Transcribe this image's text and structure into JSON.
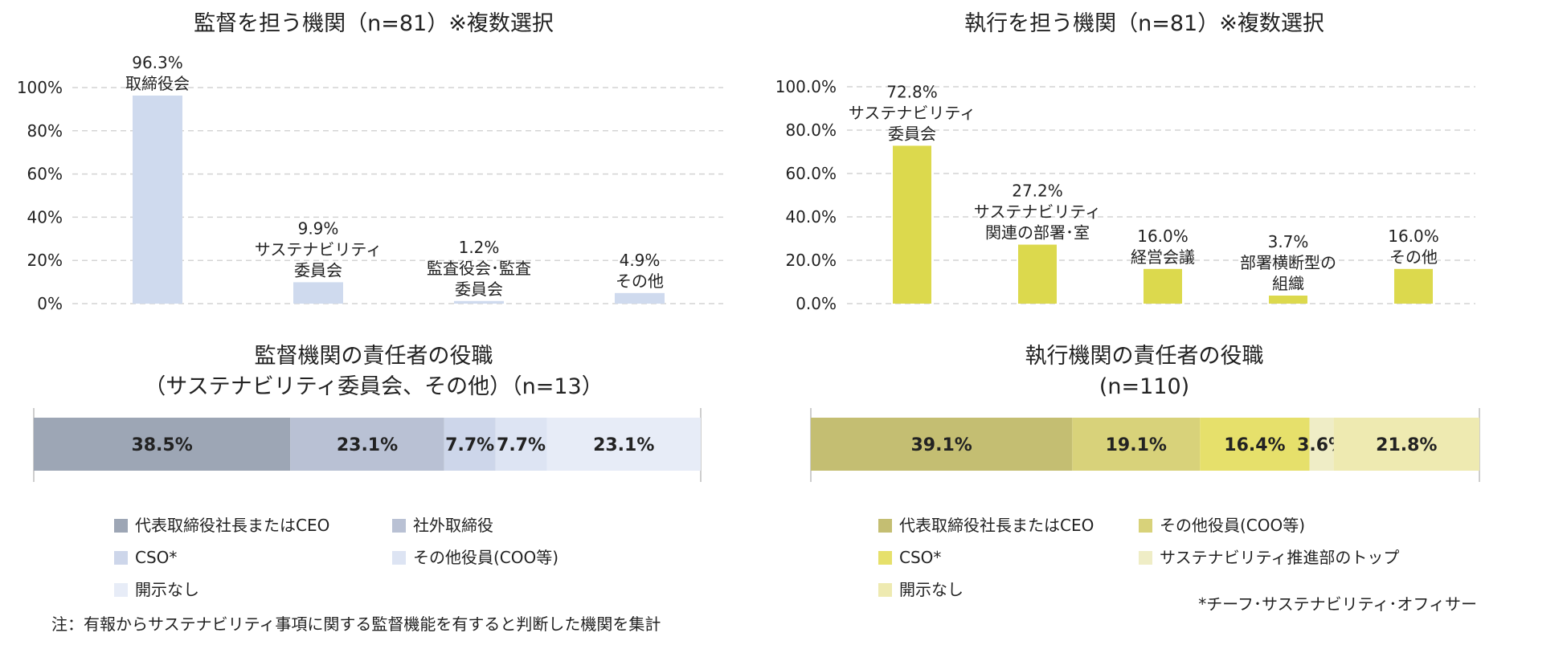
{
  "chart_data": [
    {
      "type": "bar",
      "title": "監督を担う機関（n=81）※複数選択",
      "categories": [
        "取締役会",
        "サステナビリティ\n委員会",
        "監査役会･監査\n委員会",
        "その他"
      ],
      "values": [
        96.3,
        9.9,
        1.2,
        4.9
      ],
      "value_labels": [
        "96.3%",
        "9.9%",
        "1.2%",
        "4.9%"
      ],
      "yticks": [
        "0%",
        "20%",
        "40%",
        "60%",
        "80%",
        "100%"
      ],
      "ylim": [
        0,
        100
      ],
      "color": "#cfdaee",
      "grid": true
    },
    {
      "type": "bar",
      "title": "執行を担う機関（n=81）※複数選択",
      "categories": [
        "サステナビリティ\n委員会",
        "サステナビリティ\n関連の部署･室",
        "経営会議",
        "部署横断型の\n組織",
        "その他"
      ],
      "values": [
        72.8,
        27.2,
        16.0,
        3.7,
        16.0
      ],
      "value_labels": [
        "72.8%",
        "27.2%",
        "16.0%",
        "3.7%",
        "16.0%"
      ],
      "yticks": [
        "0.0%",
        "20.0%",
        "40.0%",
        "60.0%",
        "80.0%",
        "100.0%"
      ],
      "ylim": [
        0,
        100
      ],
      "color": "#dcd94d",
      "grid": true
    },
    {
      "type": "bar",
      "stacked": true,
      "orientation": "horizontal",
      "title": [
        "監督機関の責任者の役職",
        "（サステナビリティ委員会、その他）（n=13）"
      ],
      "series": [
        {
          "name": "代表取締役社長またはCEO",
          "value": 38.5,
          "label": "38.5%",
          "color": "#9da6b5"
        },
        {
          "name": "社外取締役",
          "value": 23.1,
          "label": "23.1%",
          "color": "#b9c1d4"
        },
        {
          "name": "CSO*",
          "value": 7.7,
          "label": "7.7%",
          "color": "#cdd6ea"
        },
        {
          "name": "その他役員(COO等)",
          "value": 7.7,
          "label": "7.7%",
          "color": "#dde4f3"
        },
        {
          "name": "開示なし",
          "value": 23.1,
          "label": "23.1%",
          "color": "#e7ecf7"
        }
      ],
      "legend_position": "bottom"
    },
    {
      "type": "bar",
      "stacked": true,
      "orientation": "horizontal",
      "title": [
        "執行機関の責任者の役職",
        "(n=110)"
      ],
      "series": [
        {
          "name": "代表取締役社長またはCEO",
          "value": 39.1,
          "label": "39.1%",
          "color": "#c4be72"
        },
        {
          "name": "その他役員(COO等)",
          "value": 19.1,
          "label": "19.1%",
          "color": "#d8d27a"
        },
        {
          "name": "CSO*",
          "value": 16.4,
          "label": "16.4%",
          "color": "#e6e06b"
        },
        {
          "name": "サステナビリティ推進部のトップ",
          "value": 3.6,
          "label": "3.6%",
          "color": "#efedc6"
        },
        {
          "name": "開示なし",
          "value": 21.8,
          "label": "21.8%",
          "color": "#eeeab1"
        }
      ],
      "legend_position": "bottom"
    }
  ],
  "notes": {
    "left": "注：有報からサステナビリティ事項に関する監督機能を有すると判断した機関を集計",
    "right": "*チーフ･サステナビリティ･オフィサー"
  }
}
